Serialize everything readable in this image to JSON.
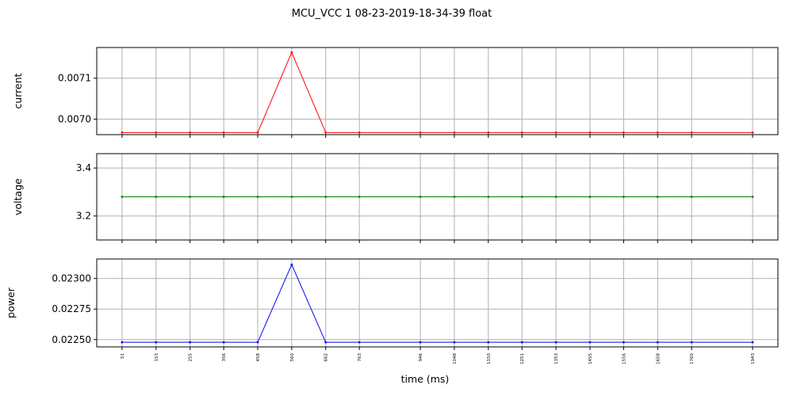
{
  "chart_data": {
    "type": "line",
    "title": "MCU_VCC   1   08-23-2019-18-34-39   float",
    "xlabel": "time (ms)",
    "x": [
      51,
      153,
      255,
      356,
      458,
      560,
      662,
      763,
      946,
      1048,
      1150,
      1251,
      1353,
      1455,
      1556,
      1658,
      1760,
      1943
    ],
    "xticklabels": [
      "51",
      "153",
      "255",
      "356",
      "458",
      "560",
      "662",
      "763",
      "946",
      "1048",
      "1150",
      "1251",
      "1353",
      "1455",
      "1556",
      "1658",
      "1760",
      "1943"
    ],
    "grid": true,
    "subplots": [
      {
        "ylabel": "current",
        "color": "#ff0000",
        "ylim": [
          0.006962,
          0.007175
        ],
        "yticks": [
          0.007,
          0.0071
        ],
        "yticklabels": [
          "0.0070",
          "0.0071"
        ],
        "values": [
          0.006967,
          0.006967,
          0.006967,
          0.006967,
          0.006967,
          0.007163,
          0.006967,
          0.006967,
          0.006967,
          0.006967,
          0.006967,
          0.006967,
          0.006967,
          0.006967,
          0.006967,
          0.006967,
          0.006967,
          0.006967
        ]
      },
      {
        "ylabel": "voltage",
        "color": "#008000",
        "ylim": [
          3.1,
          3.46
        ],
        "yticks": [
          3.2,
          3.4
        ],
        "yticklabels": [
          "3.2",
          "3.4"
        ],
        "values": [
          3.28,
          3.28,
          3.28,
          3.28,
          3.28,
          3.28,
          3.28,
          3.28,
          3.28,
          3.28,
          3.28,
          3.28,
          3.28,
          3.28,
          3.28,
          3.28,
          3.28,
          3.28
        ]
      },
      {
        "ylabel": "power",
        "color": "#0000ff",
        "ylim": [
          0.02244,
          0.02316
        ],
        "yticks": [
          0.0225,
          0.02275,
          0.023
        ],
        "yticklabels": [
          "0.02250",
          "0.02275",
          "0.02300"
        ],
        "values": [
          0.022478,
          0.022478,
          0.022478,
          0.022478,
          0.022478,
          0.023114,
          0.022478,
          0.022478,
          0.022478,
          0.022478,
          0.022478,
          0.022478,
          0.022478,
          0.022478,
          0.022478,
          0.022478,
          0.022478,
          0.022478
        ]
      }
    ]
  }
}
